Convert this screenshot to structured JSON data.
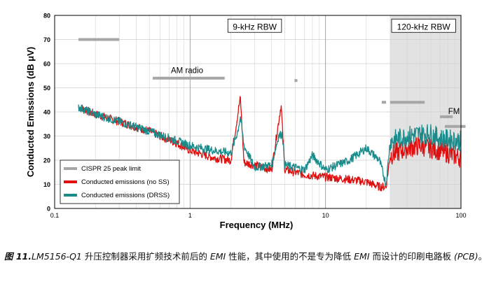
{
  "chart_data": {
    "type": "line",
    "xlabel": "Frequency (MHz)",
    "ylabel": "Conducted Emissions (dB μV)",
    "xscale": "log",
    "xlim": [
      0.1,
      100
    ],
    "ylim": [
      0,
      80
    ],
    "x_ticks": [
      "0.1",
      "1",
      "10",
      "100"
    ],
    "y_ticks": [
      "0",
      "10",
      "20",
      "30",
      "40",
      "50",
      "60",
      "70",
      "80"
    ],
    "grid": true,
    "shaded_region_x": [
      30,
      100
    ],
    "legend_position": "bottom-left",
    "annotations": [
      {
        "text": "9-kHz RBW",
        "x": 3.0,
        "y": 75
      },
      {
        "text": "120-kHz RBW",
        "x": 53,
        "y": 75
      },
      {
        "text": "AM radio",
        "x": 0.95,
        "y": 57
      },
      {
        "text": "FM",
        "x": 100,
        "y": 40
      }
    ],
    "series": [
      {
        "name": "CISPR 25 peak limit",
        "color": "#a6a6a6",
        "segments": [
          {
            "x": [
              0.15,
              0.3
            ],
            "y": [
              70,
              70
            ]
          },
          {
            "x": [
              0.53,
              1.8
            ],
            "y": [
              54,
              54
            ]
          },
          {
            "x": [
              5.9,
              6.2
            ],
            "y": [
              53,
              53
            ]
          },
          {
            "x": [
              26,
              28
            ],
            "y": [
              44,
              44
            ]
          },
          {
            "x": [
              30,
              54
            ],
            "y": [
              44,
              44
            ]
          },
          {
            "x": [
              70,
              87
            ],
            "y": [
              38,
              38
            ]
          },
          {
            "x": [
              76,
              108
            ],
            "y": [
              34,
              34
            ]
          }
        ]
      },
      {
        "name": "Conducted emissions (no SS)",
        "color": "#e01010",
        "x": [
          0.15,
          0.2,
          0.3,
          0.5,
          0.8,
          1.0,
          1.5,
          2.0,
          2.35,
          2.5,
          3.0,
          4.0,
          4.7,
          5.0,
          6.0,
          7.0,
          10.0,
          15.0,
          20.0,
          25.0,
          28.0,
          30.0,
          40.0,
          50.0,
          70.0,
          100.0
        ],
        "y": [
          42,
          39,
          36,
          32,
          27,
          24,
          21,
          20,
          46,
          19,
          18,
          16,
          43,
          16,
          15,
          14,
          13,
          12,
          11,
          9,
          9,
          22,
          25,
          26,
          24,
          21
        ]
      },
      {
        "name": "Conducted emissions (DRSS)",
        "color": "#1a8a8a",
        "x": [
          0.15,
          0.2,
          0.3,
          0.5,
          0.8,
          1.0,
          1.5,
          2.0,
          2.25,
          2.35,
          2.5,
          3.0,
          4.0,
          4.5,
          4.8,
          5.0,
          6.0,
          7.0,
          8.0,
          10.0,
          15.0,
          20.0,
          25.0,
          28.0,
          30.0,
          40.0,
          50.0,
          60.0,
          70.0,
          100.0
        ],
        "y": [
          42,
          39,
          36,
          32,
          28,
          26,
          24,
          23,
          32,
          38,
          26,
          17,
          18,
          30,
          31,
          18,
          17,
          16,
          22,
          16,
          20,
          25,
          20,
          10,
          28,
          30,
          31,
          31,
          29,
          28
        ]
      }
    ]
  },
  "caption": {
    "figure_label": "图 11.",
    "device": "LM5156-Q1",
    "text_1": " 升压控制器采用扩频技术前后的 ",
    "emi_1": "EMI",
    "text_2": " 性能，其中使用的不是专为降低 ",
    "emi_2": "EMI",
    "text_3": " 而设计的印刷电路板 ",
    "pcb": "(PCB)",
    "text_4": "。"
  }
}
